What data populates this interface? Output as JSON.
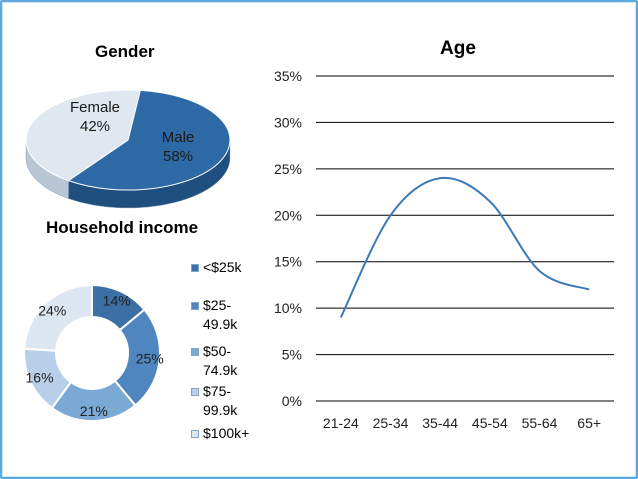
{
  "colors": {
    "male": "#2d6aa5",
    "female": "#dfe8f0",
    "line": "#3b79b8",
    "grid": "#000000",
    "border": "#5aa9e0",
    "income": [
      "#3c6fa3",
      "#4f86c0",
      "#7aa9d6",
      "#b7cfe8",
      "#dde7f2"
    ]
  },
  "chart_data": [
    {
      "type": "pie",
      "title": "Gender",
      "categories": [
        "Male",
        "Female"
      ],
      "values": [
        58,
        42
      ],
      "labels": [
        {
          "name": "Male",
          "value": "58%"
        },
        {
          "name": "Female",
          "value": "42%"
        }
      ]
    },
    {
      "type": "pie",
      "title": "Household income",
      "categories": [
        "<$25k",
        "$25-49.9k",
        "$50-74.9k",
        "$75-99.9k",
        "$100k+"
      ],
      "values": [
        14,
        25,
        21,
        16,
        24
      ],
      "value_labels": [
        "14%",
        "25%",
        "21%",
        "16%",
        "24%"
      ],
      "legend": [
        "<$25k",
        "$25-\n49.9k",
        "$50-\n74.9k",
        "$75-\n99.9k",
        "$100k+"
      ]
    },
    {
      "type": "line",
      "title": "Age",
      "categories": [
        "21-24",
        "25-34",
        "35-44",
        "45-54",
        "55-64",
        "65+"
      ],
      "values": [
        9,
        20,
        24,
        21.5,
        14,
        12
      ],
      "ylim": [
        0,
        35
      ],
      "yticks": [
        0,
        5,
        10,
        15,
        20,
        25,
        30,
        35
      ],
      "ytick_labels": [
        "0%",
        "5%",
        "10%",
        "15%",
        "20%",
        "25%",
        "30%",
        "35%"
      ],
      "grid": true
    }
  ]
}
